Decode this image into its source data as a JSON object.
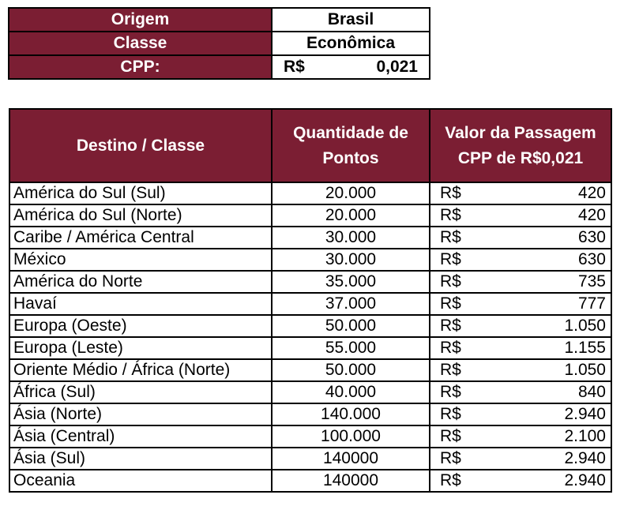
{
  "info": {
    "origem_label": "Origem",
    "origem_value": "Brasil",
    "classe_label": "Classe",
    "classe_value": "Econômica",
    "cpp_label": "CPP:",
    "cpp_currency": "R$",
    "cpp_value": "0,021"
  },
  "table": {
    "headers": [
      "Destino / Classe",
      "Quantidade de Pontos",
      "Valor da Passagem CPP de R$0,021"
    ],
    "currency": "R$",
    "rows": [
      {
        "destino": "América do Sul (Sul)",
        "pontos": "20.000",
        "valor": "420"
      },
      {
        "destino": "América do Sul (Norte)",
        "pontos": "20.000",
        "valor": "420"
      },
      {
        "destino": "Caribe / América Central",
        "pontos": "30.000",
        "valor": "630"
      },
      {
        "destino": "México",
        "pontos": "30.000",
        "valor": "630"
      },
      {
        "destino": "América do Norte",
        "pontos": "35.000",
        "valor": "735"
      },
      {
        "destino": "Havaí",
        "pontos": "37.000",
        "valor": "777"
      },
      {
        "destino": "Europa (Oeste)",
        "pontos": "50.000",
        "valor": "1.050"
      },
      {
        "destino": "Europa (Leste)",
        "pontos": "55.000",
        "valor": "1.155"
      },
      {
        "destino": "Oriente Médio / África (Norte)",
        "pontos": "50.000",
        "valor": "1.050"
      },
      {
        "destino": "África (Sul)",
        "pontos": "40.000",
        "valor": "840"
      },
      {
        "destino": "Ásia (Norte)",
        "pontos": "140.000",
        "valor": "2.940"
      },
      {
        "destino": "Ásia (Central)",
        "pontos": "100.000",
        "valor": "2.100"
      },
      {
        "destino": "Ásia (Sul)",
        "pontos": "140000",
        "valor": "2.940"
      },
      {
        "destino": "Oceania",
        "pontos": "140000",
        "valor": "2.940"
      }
    ]
  },
  "colors": {
    "header_bg": "#7b1e33",
    "header_text": "#ffffff"
  }
}
